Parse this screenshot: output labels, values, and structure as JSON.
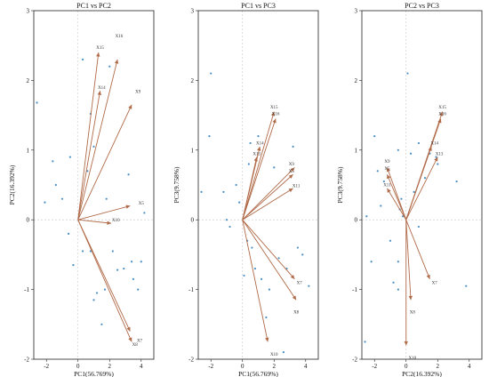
{
  "colors": {
    "arrow": "#b06a48",
    "point": "#4a8fc4",
    "frame": "#222222",
    "reference_line": "#c8c8c8"
  },
  "chart_data": [
    {
      "type": "scatter",
      "title": "PC1 vs PC2",
      "xlabel": "PC1(56.769%)",
      "ylabel": "PC2(16.392%)",
      "xlim": [
        -2.8,
        4.8
      ],
      "ylim": [
        -2,
        3
      ],
      "xticks": [
        -2,
        0,
        2,
        4
      ],
      "yticks": [
        -2,
        -1,
        0,
        1,
        2,
        3
      ],
      "points": [
        [
          -2.6,
          1.68
        ],
        [
          -2.1,
          0.25
        ],
        [
          -1.6,
          0.84
        ],
        [
          -1.4,
          0.5
        ],
        [
          -1.0,
          0.3
        ],
        [
          -0.6,
          -0.2
        ],
        [
          -0.5,
          0.9
        ],
        [
          -0.3,
          -0.65
        ],
        [
          0.3,
          -0.45
        ],
        [
          0.6,
          0.7
        ],
        [
          0.8,
          -0.45
        ],
        [
          1.0,
          1.05
        ],
        [
          0.8,
          1.52
        ],
        [
          1.2,
          -1.05
        ],
        [
          1.0,
          -1.15
        ],
        [
          1.5,
          -1.5
        ],
        [
          1.7,
          -1.0
        ],
        [
          1.8,
          0.3
        ],
        [
          2.2,
          -0.45
        ],
        [
          2.5,
          -0.72
        ],
        [
          2.9,
          -0.7
        ],
        [
          3.2,
          0.65
        ],
        [
          3.4,
          -0.6
        ],
        [
          3.5,
          -0.85
        ],
        [
          3.8,
          -1.0
        ],
        [
          4.0,
          -0.6
        ],
        [
          4.2,
          0.1
        ],
        [
          0.3,
          2.3
        ],
        [
          2.0,
          2.2
        ]
      ],
      "loadings": [
        {
          "name": "X15",
          "x": 1.3,
          "y": 2.4
        },
        {
          "name": "X16",
          "x": 2.5,
          "y": 2.3
        },
        {
          "name": "X14",
          "x": 1.4,
          "y": 1.85
        },
        {
          "name": "X9",
          "x": 3.4,
          "y": 1.65
        },
        {
          "name": "X5",
          "x": 3.3,
          "y": 0.2
        },
        {
          "name": "X10",
          "x": 2.1,
          "y": -0.05
        },
        {
          "name": "X8",
          "x": 3.3,
          "y": -1.6
        },
        {
          "name": "X7",
          "x": 3.4,
          "y": -1.75
        }
      ],
      "loading_labels": [
        {
          "name": "X15",
          "x": 1.4,
          "y": 2.45
        },
        {
          "name": "X16",
          "x": 2.6,
          "y": 2.62
        },
        {
          "name": "X14",
          "x": 1.5,
          "y": 1.88
        },
        {
          "name": "X9",
          "x": 3.8,
          "y": 1.82
        },
        {
          "name": "X5",
          "x": 4.0,
          "y": 0.22
        },
        {
          "name": "X10",
          "x": 2.4,
          "y": -0.02
        },
        {
          "name": "X8",
          "x": 3.6,
          "y": -1.81
        },
        {
          "name": "X7",
          "x": 3.9,
          "y": -1.75
        }
      ]
    },
    {
      "type": "scatter",
      "title": "PC1 vs PC3",
      "xlabel": "PC1(56.769%)",
      "ylabel": "PC3(9.758%)",
      "xlim": [
        -2.8,
        4.8
      ],
      "ylim": [
        -2,
        3
      ],
      "xticks": [
        -2,
        0,
        2,
        4
      ],
      "yticks": [
        -2,
        -1,
        0,
        1,
        2,
        3
      ],
      "points": [
        [
          -2.6,
          0.4
        ],
        [
          -2.0,
          2.1
        ],
        [
          -2.1,
          1.2
        ],
        [
          -1.2,
          0.4
        ],
        [
          -1.0,
          0.0
        ],
        [
          -0.8,
          -0.1
        ],
        [
          -0.4,
          0.5
        ],
        [
          -0.2,
          0.25
        ],
        [
          0.1,
          -0.8
        ],
        [
          0.3,
          -0.3
        ],
        [
          0.6,
          -0.4
        ],
        [
          0.8,
          -0.7
        ],
        [
          1.0,
          1.2
        ],
        [
          1.2,
          -0.85
        ],
        [
          1.5,
          -1.4
        ],
        [
          1.7,
          -1.0
        ],
        [
          2.0,
          0.75
        ],
        [
          2.3,
          -0.55
        ],
        [
          2.8,
          -0.7
        ],
        [
          3.2,
          1.05
        ],
        [
          3.5,
          -0.4
        ],
        [
          3.8,
          -0.5
        ],
        [
          4.2,
          -0.95
        ],
        [
          0.5,
          1.1
        ],
        [
          2.6,
          -1.9
        ],
        [
          0.4,
          0.8
        ]
      ],
      "loadings": [
        {
          "name": "X15",
          "x": 2.0,
          "y": 1.55
        },
        {
          "name": "X16",
          "x": 2.1,
          "y": 1.45
        },
        {
          "name": "X14",
          "x": 1.1,
          "y": 1.05
        },
        {
          "name": "X13",
          "x": 0.9,
          "y": 0.9
        },
        {
          "name": "X9",
          "x": 3.3,
          "y": 0.75
        },
        {
          "name": "X5",
          "x": 3.2,
          "y": 0.65
        },
        {
          "name": "X11",
          "x": 3.2,
          "y": 0.45
        },
        {
          "name": "X7",
          "x": 3.3,
          "y": -0.85
        },
        {
          "name": "X8",
          "x": 3.4,
          "y": -1.15
        },
        {
          "name": "X10",
          "x": 1.6,
          "y": -1.75
        }
      ],
      "loading_labels": [
        {
          "name": "X15",
          "x": 2.0,
          "y": 1.6
        },
        {
          "name": "X16",
          "x": 2.1,
          "y": 1.5
        },
        {
          "name": "X14",
          "x": 1.1,
          "y": 1.08
        },
        {
          "name": "X13",
          "x": 0.9,
          "y": 0.93
        },
        {
          "name": "X9",
          "x": 3.1,
          "y": 0.78
        },
        {
          "name": "X5",
          "x": 3.1,
          "y": 0.68
        },
        {
          "name": "X11",
          "x": 3.4,
          "y": 0.47
        },
        {
          "name": "X7",
          "x": 3.6,
          "y": -0.92
        },
        {
          "name": "X8",
          "x": 3.4,
          "y": -1.34
        },
        {
          "name": "X10",
          "x": 2.0,
          "y": -1.95
        }
      ]
    },
    {
      "type": "scatter",
      "title": "PC2 vs PC3",
      "xlabel": "PC2(16.392%)",
      "ylabel": "PC3(9.758%)",
      "xlim": [
        -2.8,
        4.8
      ],
      "ylim": [
        -2,
        3
      ],
      "xticks": [
        -2,
        0,
        2,
        4
      ],
      "yticks": [
        -2,
        -1,
        0,
        1,
        2,
        3
      ],
      "points": [
        [
          -2.5,
          0.05
        ],
        [
          -2.2,
          -0.6
        ],
        [
          -2.0,
          1.2
        ],
        [
          -1.8,
          0.7
        ],
        [
          -1.6,
          0.2
        ],
        [
          -1.4,
          0.55
        ],
        [
          -1.0,
          -0.3
        ],
        [
          -0.8,
          -0.9
        ],
        [
          -0.5,
          -0.6
        ],
        [
          -0.5,
          1.0
        ],
        [
          -0.3,
          0.3
        ],
        [
          -0.2,
          0.05
        ],
        [
          0.1,
          2.1
        ],
        [
          0.3,
          0.95
        ],
        [
          0.5,
          0.4
        ],
        [
          0.8,
          1.1
        ],
        [
          0.8,
          -0.1
        ],
        [
          1.2,
          0.6
        ],
        [
          1.5,
          0.95
        ],
        [
          1.9,
          0.9
        ],
        [
          2.0,
          0.8
        ],
        [
          3.2,
          0.55
        ],
        [
          3.8,
          -0.95
        ],
        [
          -0.5,
          -1.0
        ],
        [
          -2.6,
          -1.75
        ],
        [
          -0.4,
          0.15
        ]
      ],
      "loadings": [
        {
          "name": "X15",
          "x": 2.3,
          "y": 1.55
        },
        {
          "name": "X16",
          "x": 2.2,
          "y": 1.45
        },
        {
          "name": "X14",
          "x": 1.6,
          "y": 1.05
        },
        {
          "name": "X13",
          "x": 2.0,
          "y": 0.9
        },
        {
          "name": "X9",
          "x": -1.2,
          "y": 0.75
        },
        {
          "name": "X5",
          "x": -1.2,
          "y": 0.65
        },
        {
          "name": "X11",
          "x": -1.2,
          "y": 0.45
        },
        {
          "name": "X7",
          "x": 1.5,
          "y": -0.85
        },
        {
          "name": "X8",
          "x": 0.3,
          "y": -1.15
        },
        {
          "name": "X10",
          "x": 0.0,
          "y": -1.8
        }
      ],
      "loading_labels": [
        {
          "name": "X15",
          "x": 2.3,
          "y": 1.6
        },
        {
          "name": "X16",
          "x": 2.3,
          "y": 1.5
        },
        {
          "name": "X14",
          "x": 1.8,
          "y": 1.08
        },
        {
          "name": "X13",
          "x": 2.1,
          "y": 0.93
        },
        {
          "name": "X9",
          "x": -1.2,
          "y": 0.82
        },
        {
          "name": "X5",
          "x": -1.2,
          "y": 0.72
        },
        {
          "name": "X11",
          "x": -1.2,
          "y": 0.48
        },
        {
          "name": "X7",
          "x": 1.8,
          "y": -0.92
        },
        {
          "name": "X8",
          "x": 0.4,
          "y": -1.34
        },
        {
          "name": "X10",
          "x": 0.4,
          "y": -2.0
        }
      ]
    }
  ]
}
